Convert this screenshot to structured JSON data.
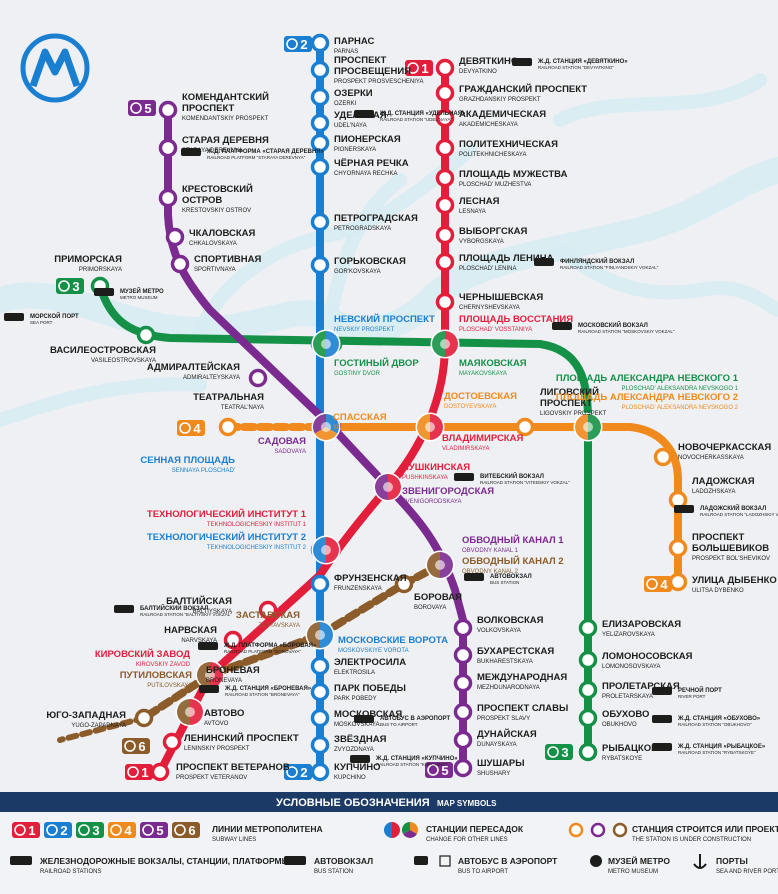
{
  "logo": {
    "letter": "M"
  },
  "lines": [
    {
      "id": "1",
      "badge": "1",
      "color": "#e31e3b"
    },
    {
      "id": "2",
      "badge": "2",
      "color": "#1b7fd1"
    },
    {
      "id": "3",
      "badge": "3",
      "color": "#159147"
    },
    {
      "id": "4",
      "badge": "4",
      "color": "#f08a1d"
    },
    {
      "id": "5",
      "badge": "5",
      "color": "#7b2b8f"
    },
    {
      "id": "6",
      "badge": "6",
      "color": "#8b5c2a"
    }
  ],
  "stations": [
    {
      "id": "parnas",
      "ru": "ПАРНАС",
      "en": "PARNAS",
      "color": "#1b7fd1"
    },
    {
      "id": "prospekt-prosvescheniya",
      "ru": "ПРОСПЕКТ\nПРОСВЕЩЕНИЯ",
      "en": "PROSPEKT PROSVESCHENIYA",
      "color": "#1b7fd1"
    },
    {
      "id": "ozerki",
      "ru": "ОЗЕРКИ",
      "en": "OZERKI",
      "color": "#1b7fd1"
    },
    {
      "id": "udelnaya",
      "ru": "УДЕЛЬНАЯ",
      "en": "UDEL'NAYA",
      "color": "#1b7fd1"
    },
    {
      "id": "pionerskaya",
      "ru": "ПИОНЕРСКАЯ",
      "en": "PIONERSKAYA",
      "color": "#1b7fd1"
    },
    {
      "id": "chernaya-rechka",
      "ru": "ЧЁРНАЯ РЕЧКА",
      "en": "CHYORNAYA RECHKA",
      "color": "#1b7fd1"
    },
    {
      "id": "petrogradskaya",
      "ru": "ПЕТРОГРАДСКАЯ",
      "en": "PETROGRADSKAYA",
      "color": "#1b7fd1"
    },
    {
      "id": "gorkovskaya",
      "ru": "ГОРЬКОВСКАЯ",
      "en": "GOR'KOVSKAYA",
      "color": "#1b7fd1"
    },
    {
      "id": "nevsky",
      "ru": "НЕВСКИЙ ПРОСПЕКТ",
      "en": "NEVSKIY PROSPEKT",
      "color": "#1b7fd1"
    },
    {
      "id": "frunzenskaya",
      "ru": "ФРУНЗЕНСКАЯ",
      "en": "FRUNZENSKAYA",
      "color": "#1b7fd1"
    },
    {
      "id": "moskovskie-vorota",
      "ru": "МОСКОВСКИЕ ВОРОТА",
      "en": "MOSKOVSKIYE VOROTA",
      "color": "#1b7fd1"
    },
    {
      "id": "elektrosila",
      "ru": "ЭЛЕКТРОСИЛА",
      "en": "ELEKTROSILA",
      "color": "#1b7fd1"
    },
    {
      "id": "park-pobedy",
      "ru": "ПАРК ПОБЕДЫ",
      "en": "PARK POBEDY",
      "color": "#1b7fd1"
    },
    {
      "id": "moskovskaya",
      "ru": "МОСКОВСКАЯ",
      "en": "MOSKOVSKAYA",
      "color": "#1b7fd1"
    },
    {
      "id": "zvezdnaya",
      "ru": "ЗВЁЗДНАЯ",
      "en": "ZVYOZDNAYA",
      "color": "#1b7fd1"
    },
    {
      "id": "kupchino",
      "ru": "КУПЧИНО",
      "en": "KUPCHINO",
      "color": "#1b7fd1"
    },
    {
      "id": "devyatkino",
      "ru": "ДЕВЯТКИНО",
      "en": "DEVYATKINO",
      "color": "#e31e3b"
    },
    {
      "id": "grazhdansky",
      "ru": "ГРАЖДАНСКИЙ ПРОСПЕКТ",
      "en": "GRAZHDANSKIY PROSPEKT",
      "color": "#e31e3b"
    },
    {
      "id": "akademicheskaya",
      "ru": "АКАДЕМИЧЕСКАЯ",
      "en": "AKADEMICHESKAYA",
      "color": "#e31e3b"
    },
    {
      "id": "politekh",
      "ru": "ПОЛИТЕХНИЧЕСКАЯ",
      "en": "POLITEKHNICHESKAYA",
      "color": "#e31e3b"
    },
    {
      "id": "pl-muzhestva",
      "ru": "ПЛОЩАДЬ МУЖЕСТВА",
      "en": "PLOSCHAD' MUZHESTVA",
      "color": "#e31e3b"
    },
    {
      "id": "lesnaya",
      "ru": "ЛЕСНАЯ",
      "en": "LESNAYA",
      "color": "#e31e3b"
    },
    {
      "id": "vyborgskaya",
      "ru": "ВЫБОРГСКАЯ",
      "en": "VYBORGSKAYA",
      "color": "#e31e3b"
    },
    {
      "id": "pl-lenina",
      "ru": "ПЛОЩАДЬ ЛЕНИНА",
      "en": "PLOSCHAD' LENINA",
      "color": "#e31e3b"
    },
    {
      "id": "chernyshevskaya",
      "ru": "ЧЕРНЫШЕВСКАЯ",
      "en": "CHERNYSHEVSKAYA",
      "color": "#e31e3b"
    },
    {
      "id": "pl-vosstaniya",
      "ru": "ПЛОЩАДЬ ВОССТАНИЯ",
      "en": "PLOSCHAD' VOSSTANIYA",
      "color": "#e31e3b"
    },
    {
      "id": "vladimirskaya",
      "ru": "ВЛАДИМИРСКАЯ",
      "en": "VLADIMIRSKAYA",
      "color": "#e31e3b"
    },
    {
      "id": "pushkinskaya",
      "ru": "ПУШКИНСКАЯ",
      "en": "PUSHKINSKAYA",
      "color": "#e31e3b"
    },
    {
      "id": "tekhnolog-1",
      "ru": "ТЕХНОЛОГИЧЕСКИЙ ИНСТИТУТ 1",
      "en": "TEKHNOLOGICHESKIY INSTITUT 1",
      "color": "#e31e3b"
    },
    {
      "id": "baltiyskaya",
      "ru": "БАЛТИЙСКАЯ",
      "en": "BALTIYSKAYA",
      "color": "#e31e3b"
    },
    {
      "id": "narvskaya",
      "ru": "НАРВСКАЯ",
      "en": "NARVSKAYA",
      "color": "#e31e3b"
    },
    {
      "id": "kirovsky-zavod",
      "ru": "КИРОВСКИЙ ЗАВОД",
      "en": "KIROVSKIY ZAVOD",
      "color": "#e31e3b"
    },
    {
      "id": "avtovo",
      "ru": "АВТОВО",
      "en": "AVTOVO",
      "color": "#e31e3b"
    },
    {
      "id": "leninsky",
      "ru": "ЛЕНИНСКИЙ ПРОСПЕКТ",
      "en": "LENINSKIY PROSPEKT",
      "color": "#e31e3b"
    },
    {
      "id": "veteranov",
      "ru": "ПРОСПЕКТ ВЕТЕРАНОВ",
      "en": "PROSPEKT VETERANOV",
      "color": "#e31e3b"
    },
    {
      "id": "primorskaya",
      "ru": "ПРИМОРСКАЯ",
      "en": "PRIMORSKAYA",
      "color": "#159147"
    },
    {
      "id": "vasileostrovskaya",
      "ru": "ВАСИЛЕОСТРОВСКАЯ",
      "en": "VASILEOSTROVSKAYA",
      "color": "#159147"
    },
    {
      "id": "gostiny-dvor",
      "ru": "ГОСТИНЫЙ ДВОР",
      "en": "GOSTINY DVOR",
      "color": "#159147"
    },
    {
      "id": "mayakovskaya",
      "ru": "МАЯКОВСКАЯ",
      "en": "MAYAKOVSKAYA",
      "color": "#159147"
    },
    {
      "id": "pl-nevskogo-1",
      "ru": "ПЛОЩАДЬ АЛЕКСАНДРА НЕВСКОГО 1",
      "en": "PLOSCHAD' ALEKSANDRA NEVSKOGO 1",
      "color": "#159147"
    },
    {
      "id": "elizarovskaya",
      "ru": "ЕЛИЗАРОВСКАЯ",
      "en": "YELIZAROVSKAYA",
      "color": "#159147"
    },
    {
      "id": "lomonosovskaya",
      "ru": "ЛОМОНОСОВСКАЯ",
      "en": "LOMONOSOVSKAYA",
      "color": "#159147"
    },
    {
      "id": "proletarskaya",
      "ru": "ПРОЛЕТАРСКАЯ",
      "en": "PROLETARSKAYA",
      "color": "#159147"
    },
    {
      "id": "obukhovo",
      "ru": "ОБУХОВО",
      "en": "OBUKHOVO",
      "color": "#159147"
    },
    {
      "id": "rybatskoe",
      "ru": "РЫБАЦКОЕ",
      "en": "RYBATSKOYE",
      "color": "#159147"
    },
    {
      "id": "teatralnaya",
      "ru": "ТЕАТРАЛЬНАЯ",
      "en": "TEATRAL'NAYA",
      "color": "#f08a1d"
    },
    {
      "id": "spasskaya",
      "ru": "СПАССКАЯ",
      "en": "SPASSKAYA",
      "color": "#f08a1d"
    },
    {
      "id": "dostoevskaya",
      "ru": "ДОСТОЕВСКАЯ",
      "en": "DOSTOYEVSKAYA",
      "color": "#f08a1d"
    },
    {
      "id": "ligovsky",
      "ru": "ЛИГОВСКИЙ\nПРОСПЕКТ",
      "en": "LIGOVSKIY PROSPEKT",
      "color": "#f08a1d"
    },
    {
      "id": "pl-nevskogo-2",
      "ru": "ПЛОЩАДЬ АЛЕКСАНДРА НЕВСКОГО 2",
      "en": "PLOSCHAD' ALEKSANDRA NEVSKOGO 2",
      "color": "#f08a1d"
    },
    {
      "id": "novocherkasskaya",
      "ru": "НОВОЧЕРКАССКАЯ",
      "en": "NOVOCHERKASSKAYA",
      "color": "#f08a1d"
    },
    {
      "id": "ladozhskaya",
      "ru": "ЛАДОЖСКАЯ",
      "en": "LADOZHSKAYA",
      "color": "#f08a1d"
    },
    {
      "id": "bolshevikov",
      "ru": "ПРОСПЕКТ\nБОЛЬШЕВИКОВ",
      "en": "PROSPEKT BOL'SHEVIKOV",
      "color": "#f08a1d"
    },
    {
      "id": "dybenko",
      "ru": "УЛИЦА ДЫБЕНКО",
      "en": "ULITSA DYBENKO",
      "color": "#f08a1d"
    },
    {
      "id": "komendantsky",
      "ru": "КОМЕНДАНТСКИЙ\nПРОСПЕКТ",
      "en": "KOMENDANTSKIY PROSPEKT",
      "color": "#7b2b8f"
    },
    {
      "id": "staraya-derevnya",
      "ru": "СТАРАЯ ДЕРЕВНЯ",
      "en": "STARAYA DEREVNYA",
      "color": "#7b2b8f"
    },
    {
      "id": "krestovsky",
      "ru": "КРЕСТОВСКИЙ\nОСТРОВ",
      "en": "KRESTOVSKIY OSTROV",
      "color": "#7b2b8f"
    },
    {
      "id": "chkalovskaya",
      "ru": "ЧКАЛОВСКАЯ",
      "en": "CHKALOVSKAYA",
      "color": "#7b2b8f"
    },
    {
      "id": "sportivnaya",
      "ru": "СПОРТИВНАЯ",
      "en": "SPORTIVNAYA",
      "color": "#7b2b8f"
    },
    {
      "id": "admiralteyskaya",
      "ru": "АДМИРАЛТЕЙСКАЯ",
      "en": "ADMIRALTEYSKAYA",
      "color": "#7b2b8f"
    },
    {
      "id": "sadovaya",
      "ru": "САДОВАЯ",
      "en": "SADOVAYA",
      "color": "#7b2b8f"
    },
    {
      "id": "zvenigorodskaya",
      "ru": "ЗВЕНИГОРОДСКАЯ",
      "en": "ZVENIGORODSKAYA",
      "color": "#7b2b8f"
    },
    {
      "id": "obvodny-1",
      "ru": "ОБВОДНЫЙ КАНАЛ 1",
      "en": "OBVODNY KANAL 1",
      "color": "#7b2b8f"
    },
    {
      "id": "volkovskaya",
      "ru": "ВОЛКОВСКАЯ",
      "en": "VOLKOVSKAYA",
      "color": "#7b2b8f"
    },
    {
      "id": "bukharestskaya",
      "ru": "БУХАРЕСТСКАЯ",
      "en": "BUKHARESTSKAYA",
      "color": "#7b2b8f"
    },
    {
      "id": "mezhdunarodnaya",
      "ru": "МЕЖДУНАРОДНАЯ",
      "en": "MEZHDUNARODNAYA",
      "color": "#7b2b8f"
    },
    {
      "id": "prospekt-slavy",
      "ru": "ПРОСПЕКТ СЛАВЫ",
      "en": "PROSPEKT SLAVY",
      "color": "#7b2b8f"
    },
    {
      "id": "dunayskaya",
      "ru": "ДУНАЙСКАЯ",
      "en": "DUNAYSKAYA",
      "color": "#7b2b8f"
    },
    {
      "id": "shushary",
      "ru": "ШУШАРЫ",
      "en": "SHUSHARY",
      "color": "#7b2b8f"
    },
    {
      "id": "sennaya",
      "ru": "СЕННАЯ ПЛОЩАДЬ",
      "en": "SENNAYA PLOSCHAD'",
      "color": "#1b7fd1"
    },
    {
      "id": "tekhnolog-2",
      "ru": "ТЕХНОЛОГИЧЕСКИЙ ИНСТИТУТ 2",
      "en": "TEKHNOLOGICHESKIY INSTITUT 2",
      "color": "#1b7fd1"
    },
    {
      "id": "obvodny-2",
      "ru": "ОБВОДНЫЙ КАНАЛ 2",
      "en": "OBVODNY KANAL 2",
      "color": "#8b5c2a"
    },
    {
      "id": "borovaya",
      "ru": "БОРОВАЯ",
      "en": "BOROVAYA",
      "color": "#8b5c2a"
    },
    {
      "id": "zastavskaya",
      "ru": "ЗАСТАВСКАЯ",
      "en": "ZASTAVSKAYA",
      "color": "#8b5c2a"
    },
    {
      "id": "putilovskaya",
      "ru": "ПУТИЛОВСКАЯ",
      "en": "PUTILOVSKAYA",
      "color": "#8b5c2a"
    },
    {
      "id": "bronevaya",
      "ru": "БРОНЕВАЯ",
      "en": "BRONEVAYA",
      "color": "#8b5c2a"
    },
    {
      "id": "yugo-zapadnaya",
      "ru": "ЮГО-ЗАПАДНАЯ",
      "en": "YUGO-ZAPADNAYA",
      "color": "#8b5c2a"
    }
  ],
  "transfers": [
    {
      "ru": "Ж.Д. СТАНЦИЯ «ДЕВЯТКИНО»",
      "en": "RAILROAD STATION \"DEVYATKINO\""
    },
    {
      "ru": "Ж.Д. СТАНЦИЯ «УДЕЛЬНАЯ»",
      "en": "RAILROAD STATION \"UDEL'NAYA\""
    },
    {
      "ru": "Ж.Д. ПЛАТФОРМА «СТАРАЯ ДЕРЕВНЯ»",
      "en": "RAILROAD PLATFORM \"STARAYA DEREVNYA\""
    },
    {
      "ru": "ФИНЛЯНДСКИЙ ВОКЗАЛ",
      "en": "RAILROAD STATION \"FINLYANDSKIY VOKZAL\""
    },
    {
      "ru": "МОСКОВСКИЙ ВОКЗАЛ",
      "en": "RAILROAD STATION \"MOSKOVSKIY VOKZAL\""
    },
    {
      "ru": "ВИТЕБСКИЙ ВОКЗАЛ",
      "en": "RAILROAD STATION \"VITEBSKIY VOKZAL\""
    },
    {
      "ru": "ЛАДОЖСКИЙ ВОКЗАЛ",
      "en": "RAILROAD STATION \"LADOZHSKIY VOKZAL\""
    },
    {
      "ru": "АВТОВОКЗАЛ",
      "en": "BUS STATION"
    },
    {
      "ru": "БАЛТИЙСКИЙ ВОКЗАЛ",
      "en": "RAILROAD STATION \"BALTIYSKIY VOKZAL\""
    },
    {
      "ru": "Ж.Д. ПЛАТФОРМА «БОРОВАЯ»",
      "en": "RAILROAD PLATFORM \"BOROVAYA\""
    },
    {
      "ru": "Ж.Д. СТАНЦИЯ «БРОНЕВАЯ»",
      "en": "RAILROAD STATION \"BRONEVAYA\""
    },
    {
      "ru": "АВТОБУС В АЭРОПОРТ",
      "en": "BUS TO AIRPORT"
    },
    {
      "ru": "Ж.Д. СТАНЦИЯ «КУПЧИНО»",
      "en": "RAILROAD STATION \"KUPCHINO\""
    },
    {
      "ru": "РЕЧНОЙ ПОРТ",
      "en": "RIVER PORT"
    },
    {
      "ru": "Ж.Д. СТАНЦИЯ «ОБУХОВО»",
      "en": "RAILROAD STATION \"OBUKHOVO\""
    },
    {
      "ru": "Ж.Д. СТАНЦИЯ «РЫБАЦКОЕ»",
      "en": "RAILROAD STATION \"RYBATSKOYE\""
    },
    {
      "ru": "МУЗЕЙ МЕТРО",
      "en": "METRO MUSEUM"
    },
    {
      "ru": "МОРСКОЙ ПОРТ",
      "en": "SEA PORT"
    }
  ],
  "legend": {
    "title_ru": "УСЛОВНЫЕ ОБОЗНАЧЕНИЯ",
    "title_en": "MAP SYMBOLS",
    "lines_ru": "ЛИНИИ МЕТРОПОЛИТЕНА",
    "lines_en": "SUBWAY LINES",
    "transfer_ru": "СТАНЦИИ ПЕРЕСАДОК",
    "transfer_en": "CHANGE FOR OTHER LINES",
    "construction_ru": "СТАНЦИЯ СТРОИТСЯ ИЛИ ПРОЕКТИРУЕТСЯ",
    "construction_en": "THE STATION IS UNDER CONSTRUCTION",
    "rail_ru": "ЖЕЛЕЗНОДОРОЖНЫЕ ВОКЗАЛЫ, СТАНЦИИ, ПЛАТФОРМЫ",
    "rail_en": "RAILROAD STATIONS",
    "bus_ru": "АВТОВОКЗАЛ",
    "bus_en": "BUS STATION",
    "airport_ru": "АВТОБУС В АЭРОПОРТ",
    "airport_en": "BUS TO AIRPORT",
    "museum_ru": "МУЗЕЙ МЕТРО",
    "museum_en": "METRO MUSEUM",
    "ports_ru": "ПОРТЫ",
    "ports_en": "SEA AND RIVER PORTS"
  },
  "colors": {
    "water": "#d7ecf3",
    "background": "#eef0f4",
    "legend_bar": "#1b3a66"
  }
}
